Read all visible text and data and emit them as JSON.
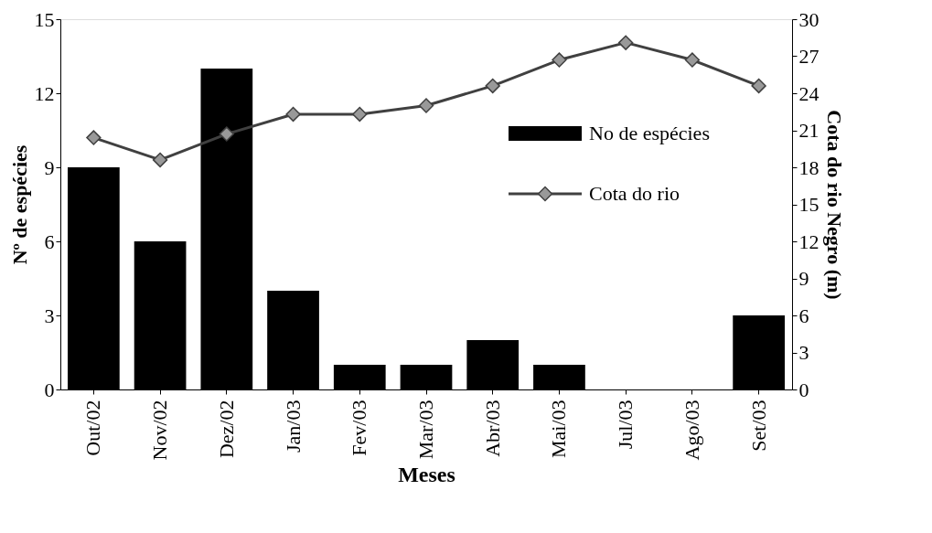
{
  "chart_data": {
    "type": "bar",
    "xlabel": "Meses",
    "ylabel": "Nº de espécies",
    "y2label": "Cota do rio Negro (m)",
    "categories": [
      "Out/02",
      "Nov/02",
      "Dez/02",
      "Jan/03",
      "Fev/03",
      "Mar/03",
      "Abr/03",
      "Mai/03",
      "Jul/03",
      "Ago/03",
      "Set/03"
    ],
    "series": [
      {
        "name": "No de espécies",
        "color": "#000000",
        "values": [
          9,
          6,
          13,
          4,
          1,
          1,
          2,
          1,
          0,
          0,
          3
        ]
      },
      {
        "name": "Cota do rio",
        "type": "line",
        "axis": "y2",
        "color": "#404040",
        "marker": "diamond",
        "values": [
          20.4,
          18.6,
          20.7,
          22.3,
          22.3,
          23.0,
          24.6,
          26.7,
          28.1,
          26.7,
          24.6
        ]
      }
    ],
    "ylim": [
      0,
      15
    ],
    "yticks": [
      0,
      3,
      6,
      9,
      12,
      15
    ],
    "y2lim": [
      0,
      30
    ],
    "y2ticks": [
      0,
      3,
      6,
      9,
      12,
      15,
      18,
      21,
      24,
      27,
      30
    ],
    "grid": false,
    "legend": "right"
  }
}
